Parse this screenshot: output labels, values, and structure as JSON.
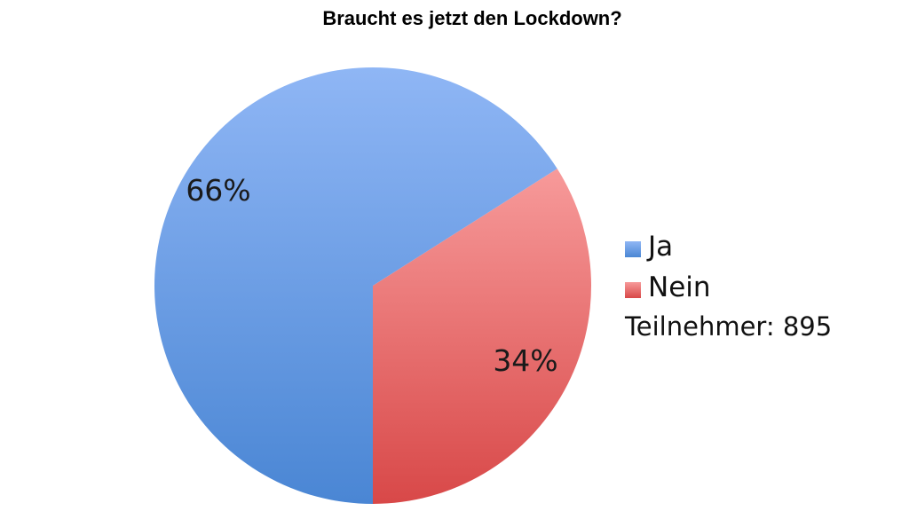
{
  "chart_data": {
    "type": "pie",
    "title": "Braucht es jetzt den Lockdown?",
    "slices": [
      {
        "label": "Ja",
        "value": 66,
        "display": "66%",
        "color": "#8fb6f5",
        "color_dark": "#4a86d4"
      },
      {
        "label": "Nein",
        "value": 34,
        "display": "34%",
        "color": "#f79a9a",
        "color_dark": "#d84848"
      }
    ],
    "legend_position": "right",
    "note": "Teilnehmer: 895"
  }
}
